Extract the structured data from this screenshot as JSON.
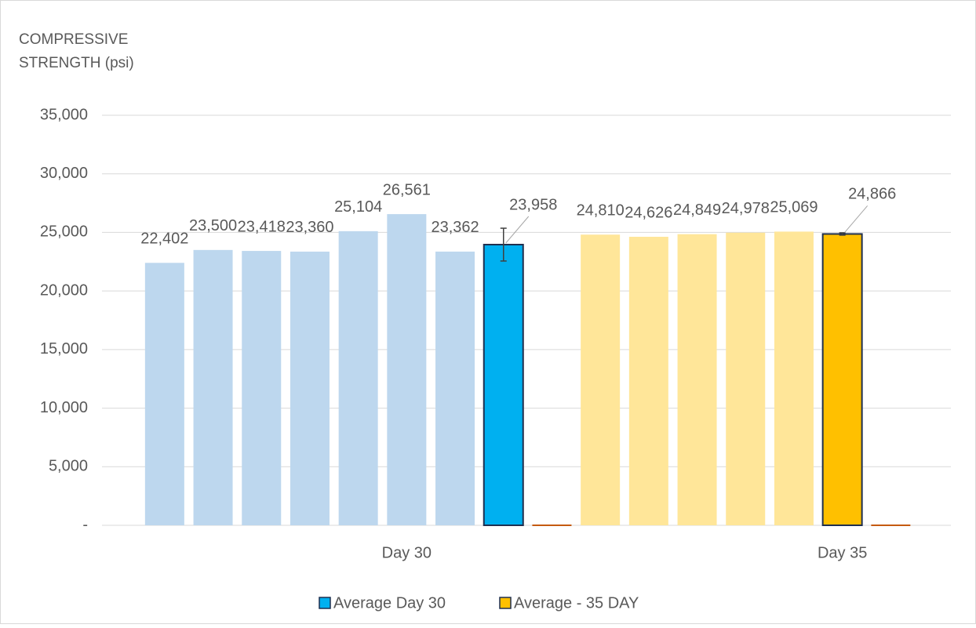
{
  "chart_data": {
    "type": "bar",
    "y_label": "COMPRESSIVE STRENGTH (psi)",
    "categories": [
      null,
      null,
      null,
      null,
      null,
      "Day 30",
      null,
      null,
      null,
      null,
      null,
      null,
      null,
      null,
      "Day 35",
      null
    ],
    "ylim": [
      0,
      35000
    ],
    "yticks": [
      {
        "value": 0,
        "label": "-"
      },
      {
        "value": 5000,
        "label": "5,000"
      },
      {
        "value": 10000,
        "label": "10,000"
      },
      {
        "value": 15000,
        "label": "15,000"
      },
      {
        "value": 20000,
        "label": "20,000"
      },
      {
        "value": 25000,
        "label": "25,000"
      },
      {
        "value": 30000,
        "label": "30,000"
      },
      {
        "value": 35000,
        "label": "35,000"
      }
    ],
    "grid": true,
    "legend": "bottom",
    "series": [
      {
        "color": "#bdd7ee",
        "values": [
          22402,
          23500,
          23418,
          23360,
          25104,
          26561,
          23362,
          null,
          null,
          null,
          null,
          null,
          null,
          null,
          null,
          null
        ],
        "value_labels": [
          "22,402",
          "23,500",
          "23,418",
          "23,360",
          "25,104",
          "26,561",
          "23,362",
          null,
          null,
          null,
          null,
          null,
          null,
          null,
          null,
          null
        ]
      },
      {
        "color": "#ffe699",
        "values": [
          null,
          null,
          null,
          null,
          null,
          null,
          null,
          null,
          null,
          24810,
          24626,
          24849,
          24978,
          25069,
          null,
          null
        ],
        "value_labels": [
          null,
          null,
          null,
          null,
          null,
          null,
          null,
          null,
          null,
          "24,810",
          "24,626",
          "24,849",
          "24,978",
          "25,069",
          null,
          null
        ]
      },
      {
        "name": "Average Day 30",
        "color": "#00b0f0",
        "values": [
          null,
          null,
          null,
          null,
          null,
          null,
          null,
          23958,
          null,
          null,
          null,
          null,
          null,
          null,
          null,
          null
        ],
        "errors": [
          null,
          null,
          null,
          null,
          null,
          null,
          null,
          1400,
          null,
          null,
          null,
          null,
          null,
          null,
          null,
          null
        ],
        "value_labels": [
          null,
          null,
          null,
          null,
          null,
          null,
          null,
          "23,958",
          null,
          null,
          null,
          null,
          null,
          null,
          null,
          null
        ]
      },
      {
        "name": "Average - 35 DAY",
        "color": "#ffc000",
        "values": [
          null,
          null,
          null,
          null,
          null,
          null,
          null,
          null,
          null,
          null,
          null,
          null,
          null,
          null,
          24866,
          null
        ],
        "errors": [
          null,
          null,
          null,
          null,
          null,
          null,
          null,
          null,
          null,
          null,
          null,
          null,
          null,
          null,
          100,
          null
        ],
        "value_labels": [
          null,
          null,
          null,
          null,
          null,
          null,
          null,
          null,
          null,
          null,
          null,
          null,
          null,
          null,
          "24,866",
          null
        ]
      },
      {
        "color": "#c55a11",
        "values": [
          null,
          null,
          null,
          null,
          null,
          null,
          null,
          null,
          0,
          null,
          null,
          null,
          null,
          null,
          null,
          0
        ]
      }
    ]
  }
}
